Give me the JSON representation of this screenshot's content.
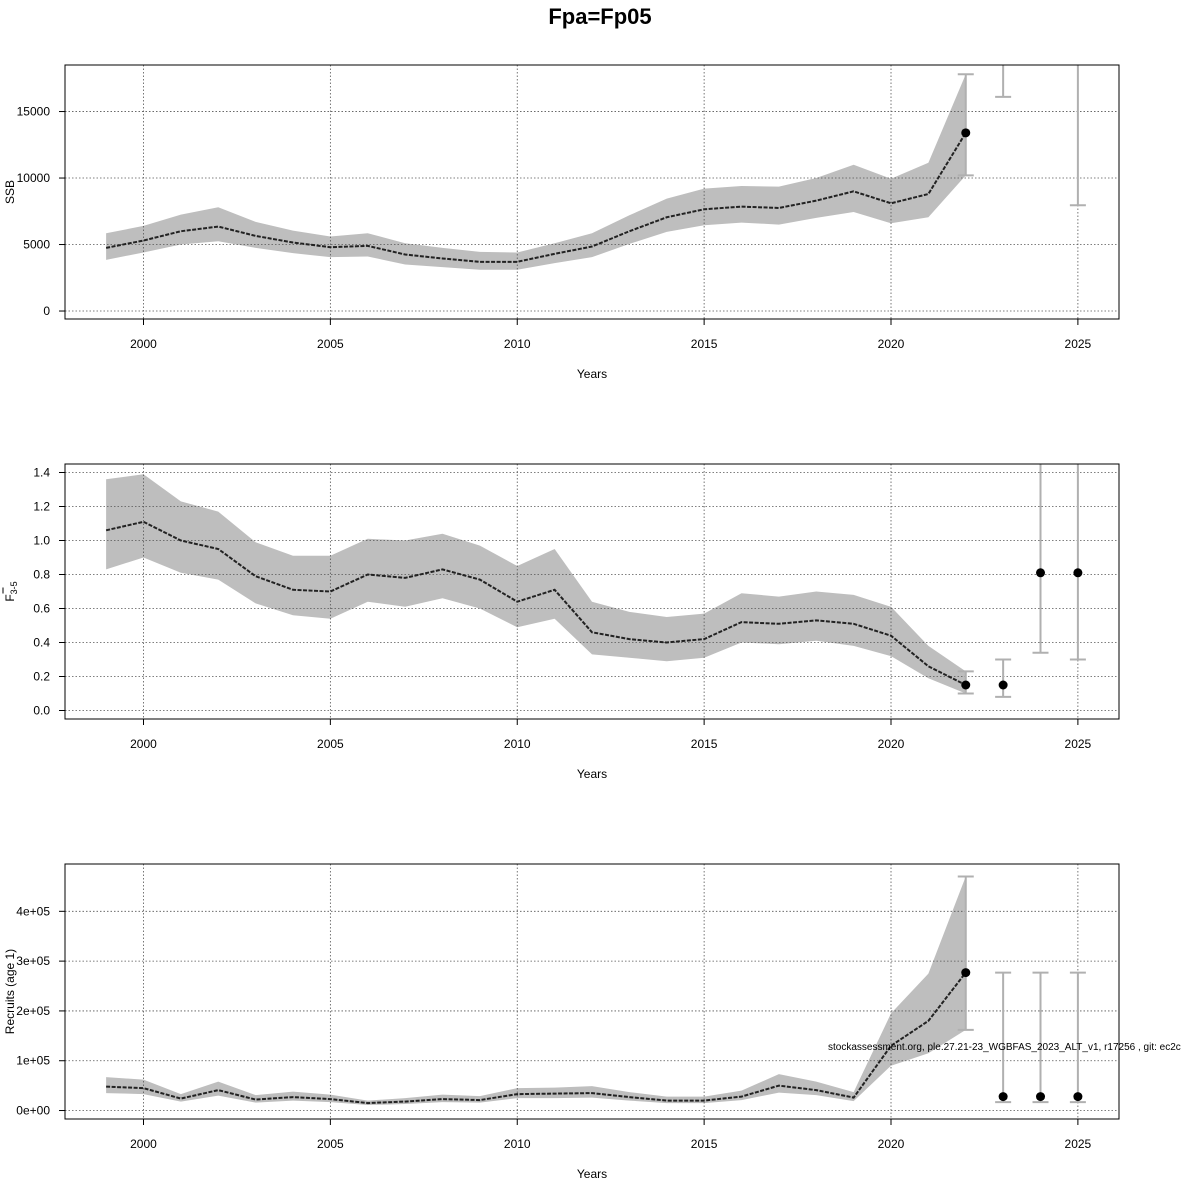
{
  "figure": {
    "title": "Fpa=Fp05",
    "footnote": "stockassessment.org, ple.27.21-23_WGBFAS_2023_ALT_v1, r17256 , git: ec2c"
  },
  "colors": {
    "band": "#bebebe",
    "line": "#222222",
    "point": "#000000",
    "errorbar": "#b0b0b0",
    "grid": "#555555",
    "frame": "#000000"
  },
  "chart_data": [
    {
      "type": "line",
      "panel": "ssb",
      "title": "",
      "xlabel": "Years",
      "ylabel": "SSB",
      "xlim": [
        1997.9,
        2026.1
      ],
      "ylim": [
        -600,
        18500
      ],
      "grid": true,
      "x_ticks": [
        2000,
        2005,
        2010,
        2015,
        2020,
        2025
      ],
      "x_tick_labels": [
        "2000",
        "2005",
        "2010",
        "2015",
        "2020",
        "2025"
      ],
      "y_ticks": [
        0,
        5000,
        10000,
        15000
      ],
      "y_tick_labels": [
        "0",
        "5000",
        "10000",
        "15000"
      ],
      "x": [
        1999,
        2000,
        2001,
        2002,
        2003,
        2004,
        2005,
        2006,
        2007,
        2008,
        2009,
        2010,
        2011,
        2012,
        2013,
        2014,
        2015,
        2016,
        2017,
        2018,
        2019,
        2020,
        2021,
        2022
      ],
      "estimate": [
        4750,
        5300,
        6000,
        6350,
        5650,
        5150,
        4800,
        4900,
        4250,
        3950,
        3700,
        3700,
        4300,
        4850,
        6000,
        7050,
        7650,
        7850,
        7750,
        8300,
        9000,
        8100,
        8800,
        13400
      ],
      "lower": [
        3850,
        4400,
        5000,
        5250,
        4750,
        4350,
        4050,
        4100,
        3500,
        3300,
        3100,
        3100,
        3600,
        4050,
        5050,
        5950,
        6450,
        6650,
        6500,
        7000,
        7450,
        6600,
        7050,
        10200
      ],
      "upper": [
        5850,
        6400,
        7250,
        7800,
        6700,
        6050,
        5600,
        5850,
        5100,
        4750,
        4450,
        4400,
        5100,
        5850,
        7200,
        8450,
        9200,
        9400,
        9350,
        10000,
        11000,
        9950,
        11150,
        17800
      ],
      "projection": {
        "x": [
          2022,
          2023,
          2025
        ],
        "estimate": [
          13400,
          null,
          null
        ],
        "lower": [
          10200,
          16100,
          7950
        ],
        "upper": [
          17800,
          null,
          null
        ]
      }
    },
    {
      "type": "line",
      "panel": "fbar",
      "title": "",
      "xlabel": "Years",
      "ylabel": "F",
      "ylabel_sub": "3-5",
      "xlim": [
        1997.9,
        2026.1
      ],
      "ylim": [
        -0.05,
        1.45
      ],
      "grid": true,
      "x_ticks": [
        2000,
        2005,
        2010,
        2015,
        2020,
        2025
      ],
      "x_tick_labels": [
        "2000",
        "2005",
        "2010",
        "2015",
        "2020",
        "2025"
      ],
      "y_ticks": [
        0,
        0.2,
        0.4,
        0.6,
        0.8,
        1.0,
        1.2,
        1.4
      ],
      "y_tick_labels": [
        "0.0",
        "0.2",
        "0.4",
        "0.6",
        "0.8",
        "1.0",
        "1.2",
        "1.4"
      ],
      "x": [
        1999,
        2000,
        2001,
        2002,
        2003,
        2004,
        2005,
        2006,
        2007,
        2008,
        2009,
        2010,
        2011,
        2012,
        2013,
        2014,
        2015,
        2016,
        2017,
        2018,
        2019,
        2020,
        2021,
        2022
      ],
      "estimate": [
        1.06,
        1.11,
        1.0,
        0.95,
        0.79,
        0.71,
        0.7,
        0.8,
        0.78,
        0.83,
        0.77,
        0.64,
        0.71,
        0.46,
        0.42,
        0.4,
        0.42,
        0.52,
        0.51,
        0.53,
        0.51,
        0.44,
        0.26,
        0.15
      ],
      "lower": [
        0.83,
        0.9,
        0.81,
        0.77,
        0.63,
        0.56,
        0.54,
        0.64,
        0.61,
        0.66,
        0.6,
        0.49,
        0.54,
        0.33,
        0.31,
        0.29,
        0.31,
        0.4,
        0.39,
        0.41,
        0.38,
        0.32,
        0.19,
        0.1
      ],
      "upper": [
        1.36,
        1.39,
        1.23,
        1.17,
        0.99,
        0.91,
        0.91,
        1.01,
        1.0,
        1.04,
        0.97,
        0.85,
        0.95,
        0.64,
        0.58,
        0.55,
        0.57,
        0.69,
        0.67,
        0.7,
        0.68,
        0.61,
        0.38,
        0.23
      ],
      "projection": {
        "x": [
          2022,
          2023,
          2024,
          2025
        ],
        "estimate": [
          0.15,
          0.15,
          0.81,
          0.81
        ],
        "lower": [
          0.1,
          0.08,
          0.34,
          0.3
        ],
        "upper": [
          0.23,
          0.3,
          null,
          null
        ]
      }
    },
    {
      "type": "line",
      "panel": "recruits",
      "title": "",
      "xlabel": "Years",
      "ylabel": "Recruits (age 1)",
      "xlim": [
        1997.9,
        2026.1
      ],
      "ylim": [
        -17000,
        495000
      ],
      "grid": true,
      "x_ticks": [
        2000,
        2005,
        2010,
        2015,
        2020,
        2025
      ],
      "x_tick_labels": [
        "2000",
        "2005",
        "2010",
        "2015",
        "2020",
        "2025"
      ],
      "y_ticks": [
        0,
        100000,
        200000,
        300000,
        400000
      ],
      "y_tick_labels": [
        "0e+00",
        "1e+05",
        "2e+05",
        "3e+05",
        "4e+05"
      ],
      "x": [
        1999,
        2000,
        2001,
        2002,
        2003,
        2004,
        2005,
        2006,
        2007,
        2008,
        2009,
        2010,
        2011,
        2012,
        2013,
        2014,
        2015,
        2016,
        2017,
        2018,
        2019,
        2020,
        2021,
        2022
      ],
      "estimate": [
        48000,
        45000,
        24000,
        41000,
        22000,
        27000,
        23000,
        15000,
        18000,
        23000,
        21000,
        33000,
        34000,
        35000,
        27000,
        20000,
        20000,
        28000,
        50000,
        41000,
        26000,
        130000,
        180000,
        277000
      ],
      "lower": [
        35000,
        33000,
        18000,
        30000,
        16000,
        20000,
        17000,
        11000,
        13000,
        17000,
        16000,
        25000,
        25000,
        26000,
        20000,
        15000,
        15000,
        21000,
        36000,
        31000,
        19000,
        90000,
        115000,
        162000
      ],
      "upper": [
        67000,
        62000,
        33000,
        58000,
        31000,
        38000,
        32000,
        20000,
        25000,
        32000,
        29000,
        45000,
        46000,
        49000,
        37000,
        28000,
        28000,
        40000,
        73000,
        58000,
        37000,
        195000,
        275000,
        470000
      ],
      "projection": {
        "x": [
          2022,
          2023,
          2024,
          2025
        ],
        "estimate": [
          277000,
          28000,
          28000,
          28000
        ],
        "lower": [
          162000,
          17000,
          17000,
          17000
        ],
        "upper": [
          470000,
          277000,
          277000,
          277000
        ]
      }
    }
  ]
}
